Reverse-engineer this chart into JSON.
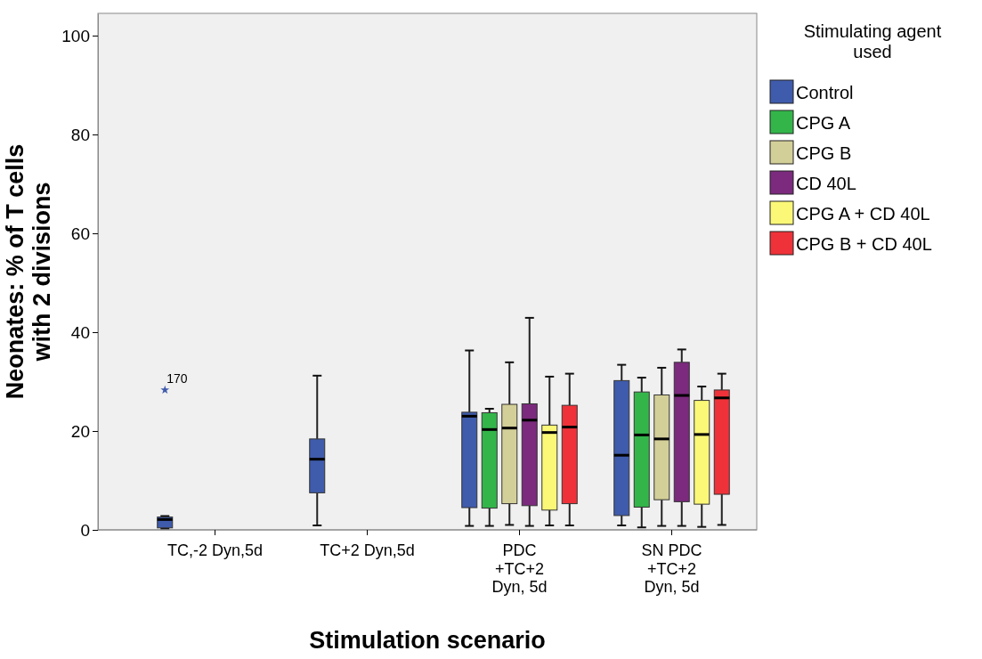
{
  "chart_data": {
    "type": "box",
    "xlabel": "Stimulation scenario",
    "ylabel": "Neonates: % of T cells with 2 divisions",
    "legend_title": "Stimulating agent used",
    "categories": [
      "TC,-2 Dyn,5d",
      "TC+2 Dyn,5d",
      "PDC +TC+2 Dyn, 5d",
      "SN PDC +TC+2 Dyn, 5d"
    ],
    "ylim": [
      0,
      104.5
    ],
    "yticks": [
      0,
      20,
      40,
      60,
      80,
      100
    ],
    "grid": false,
    "legend": "right",
    "marker": "star",
    "annotations": [
      "170"
    ],
    "series": [
      {
        "name": "Control",
        "color": "#3f5bab",
        "boxes": [
          {
            "low": 0.3,
            "q1": 0.4,
            "median": 2.1,
            "q3": 2.6,
            "high": 2.8,
            "outliers": [
              28.3
            ]
          },
          {
            "low": 0.9,
            "q1": 7.5,
            "median": 14.3,
            "q3": 18.4,
            "high": 31.2
          },
          {
            "low": 0.8,
            "q1": 4.5,
            "median": 23.0,
            "q3": 23.8,
            "high": 36.3
          },
          {
            "low": 0.9,
            "q1": 2.9,
            "median": 15.1,
            "q3": 30.2,
            "high": 33.4
          }
        ]
      },
      {
        "name": "CPG A",
        "color": "#33b54a",
        "boxes": [
          null,
          null,
          {
            "low": 0.8,
            "q1": 4.4,
            "median": 20.3,
            "q3": 23.7,
            "high": 24.5
          },
          {
            "low": 0.5,
            "q1": 4.6,
            "median": 19.2,
            "q3": 27.9,
            "high": 30.8
          }
        ]
      },
      {
        "name": "CPG B",
        "color": "#d3cf98",
        "boxes": [
          null,
          null,
          {
            "low": 1.0,
            "q1": 5.3,
            "median": 20.6,
            "q3": 25.4,
            "high": 33.9
          },
          {
            "low": 0.8,
            "q1": 6.1,
            "median": 18.4,
            "q3": 27.3,
            "high": 32.8
          }
        ]
      },
      {
        "name": "CD 40L",
        "color": "#7b2a7d",
        "boxes": [
          null,
          null,
          {
            "low": 0.8,
            "q1": 4.9,
            "median": 22.2,
            "q3": 25.5,
            "high": 42.9
          },
          {
            "low": 0.8,
            "q1": 5.7,
            "median": 27.2,
            "q3": 33.9,
            "high": 36.5
          }
        ]
      },
      {
        "name": "CPG A + CD 40L",
        "color": "#fbf877",
        "boxes": [
          null,
          null,
          {
            "low": 0.9,
            "q1": 4.0,
            "median": 19.7,
            "q3": 21.2,
            "high": 31.0
          },
          {
            "low": 0.6,
            "q1": 5.2,
            "median": 19.3,
            "q3": 26.2,
            "high": 29.0
          }
        ]
      },
      {
        "name": "CPG B + CD 40L",
        "color": "#ef3239",
        "boxes": [
          null,
          null,
          {
            "low": 0.9,
            "q1": 5.3,
            "median": 20.8,
            "q3": 25.2,
            "high": 31.6
          },
          {
            "low": 1.0,
            "q1": 7.2,
            "median": 26.7,
            "q3": 28.3,
            "high": 31.6
          }
        ]
      }
    ]
  }
}
